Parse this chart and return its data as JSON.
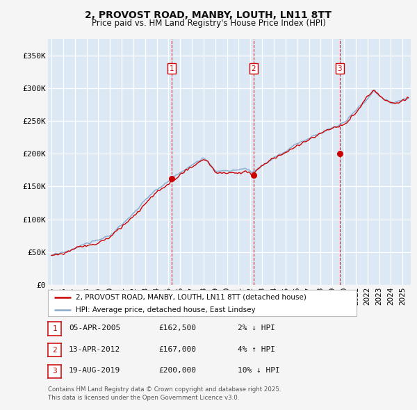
{
  "title": "2, PROVOST ROAD, MANBY, LOUTH, LN11 8TT",
  "subtitle": "Price paid vs. HM Land Registry's House Price Index (HPI)",
  "background_color": "#dce9f5",
  "grid_color": "#ffffff",
  "line_color_hpi": "#88aacc",
  "line_color_price": "#cc0000",
  "fig_bg": "#f5f5f5",
  "ylim": [
    0,
    375000
  ],
  "yticks": [
    0,
    50000,
    100000,
    150000,
    200000,
    250000,
    300000,
    350000
  ],
  "ytick_labels": [
    "£0",
    "£50K",
    "£100K",
    "£150K",
    "£200K",
    "£250K",
    "£300K",
    "£350K"
  ],
  "year_start": 1995,
  "year_end": 2025,
  "sales": [
    {
      "num": 1,
      "date": "05-APR-2005",
      "year": 2005.27,
      "price": 162500,
      "pct": "2%",
      "dir": "↓"
    },
    {
      "num": 2,
      "date": "13-APR-2012",
      "year": 2012.28,
      "price": 167000,
      "pct": "4%",
      "dir": "↑"
    },
    {
      "num": 3,
      "date": "19-AUG-2019",
      "year": 2019.63,
      "price": 200000,
      "pct": "10%",
      "dir": "↓"
    }
  ],
  "legend_line1": "2, PROVOST ROAD, MANBY, LOUTH, LN11 8TT (detached house)",
  "legend_line2": "HPI: Average price, detached house, East Lindsey",
  "footer": "Contains HM Land Registry data © Crown copyright and database right 2025.\nThis data is licensed under the Open Government Licence v3.0.",
  "title_fontsize": 10,
  "subtitle_fontsize": 8.5
}
